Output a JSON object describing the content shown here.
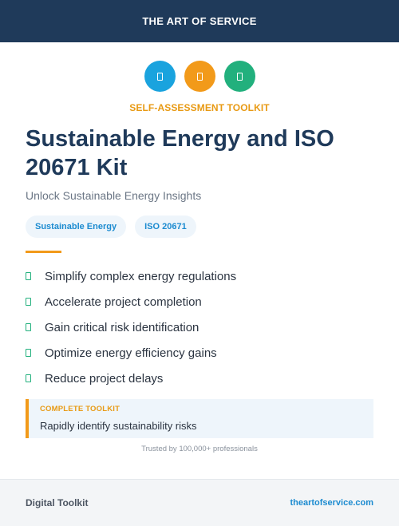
{
  "header": {
    "brand": "THE ART OF SERVICE"
  },
  "icons": [
    {
      "name": "document-icon",
      "color": "#1aa3de"
    },
    {
      "name": "document-icon",
      "color": "#f29a1a"
    },
    {
      "name": "document-icon",
      "color": "#22b07d"
    }
  ],
  "hero": {
    "kicker": "SELF-ASSESSMENT TOOLKIT",
    "title": "Sustainable Energy and ISO 20671 Kit",
    "subtitle": "Unlock Sustainable Energy Insights"
  },
  "tags": [
    "Sustainable Energy",
    "ISO 20671"
  ],
  "benefits": [
    "Simplify complex energy regulations",
    "Accelerate project completion",
    "Gain critical risk identification",
    "Optimize energy efficiency gains",
    "Reduce project delays"
  ],
  "callout": {
    "label": "COMPLETE TOOLKIT",
    "text": "Rapidly identify sustainability risks"
  },
  "trusted": "Trusted by 100,000+ professionals",
  "footer": {
    "left": "Digital Toolkit",
    "right": "theartofservice.com"
  },
  "colors": {
    "navy": "#1f3a5a",
    "accent_orange": "#f29a1a",
    "accent_blue": "#1aa3de",
    "accent_green": "#22b07d"
  }
}
